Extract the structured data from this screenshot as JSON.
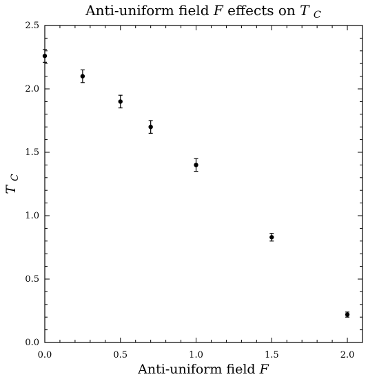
{
  "chart_data": {
    "type": "scatter",
    "title_prefix": "Anti-uniform field ",
    "title_var": "F",
    "title_mid": " effects on ",
    "title_sym": "T",
    "title_sub": "C",
    "xlabel_prefix": "Anti-uniform field ",
    "xlabel_var": "F",
    "ylabel_sym": "T",
    "ylabel_sub": "C",
    "xlim": [
      0.0,
      2.1
    ],
    "ylim": [
      0.0,
      2.5
    ],
    "x_ticks": [
      0.0,
      0.5,
      1.0,
      1.5,
      2.0
    ],
    "y_ticks": [
      0.0,
      0.5,
      1.0,
      1.5,
      2.0,
      2.5
    ],
    "x_tick_labels": [
      "0.0",
      "0.5",
      "1.0",
      "1.5",
      "2.0"
    ],
    "y_tick_labels": [
      "0.0",
      "0.5",
      "1.0",
      "1.5",
      "2.0",
      "2.5"
    ],
    "grid": false,
    "legend": false,
    "marker_color": "#000000",
    "series": [
      {
        "x": [
          0.0,
          0.25,
          0.5,
          0.7,
          1.0,
          1.5,
          2.0
        ],
        "y": [
          2.26,
          2.1,
          1.9,
          1.7,
          1.4,
          0.83,
          0.22
        ],
        "yerr": [
          0.05,
          0.05,
          0.05,
          0.05,
          0.05,
          0.03,
          0.02
        ]
      }
    ]
  }
}
